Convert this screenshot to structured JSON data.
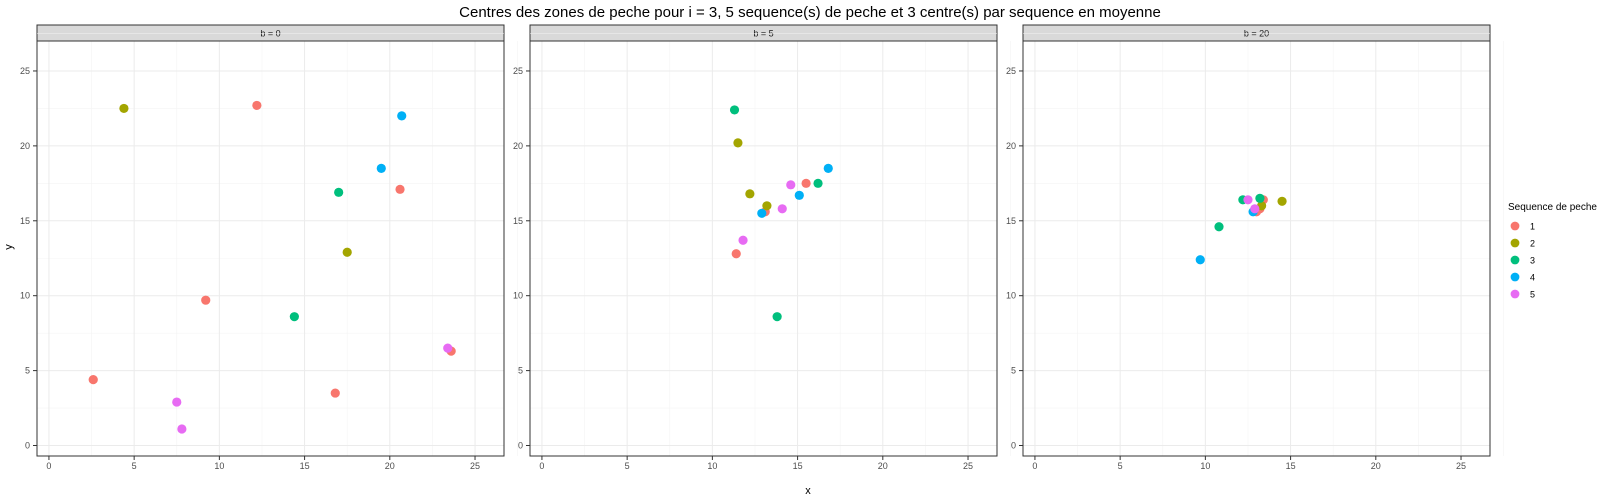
{
  "chart_data": {
    "type": "scatter",
    "title": "Centres des zones de peche pour i = 3, 5 sequence(s) de peche et 3 centre(s) par sequence en moyenne",
    "xlabel": "x",
    "ylabel": "y",
    "xlim": [
      -0.7,
      26.7
    ],
    "ylim": [
      -0.7,
      27.0
    ],
    "x_ticks": [
      0,
      5,
      10,
      15,
      20,
      25
    ],
    "y_ticks": [
      0,
      5,
      10,
      15,
      20,
      25
    ],
    "grid": true,
    "legend": {
      "title": "Sequence de peche",
      "placement": "right",
      "entries": [
        {
          "label": "1",
          "color": "#F8766D"
        },
        {
          "label": "2",
          "color": "#A3A500"
        },
        {
          "label": "3",
          "color": "#00BF7D"
        },
        {
          "label": "4",
          "color": "#00B0F6"
        },
        {
          "label": "5",
          "color": "#E76BF3"
        }
      ]
    },
    "facets": [
      {
        "label": "b = 0",
        "points": [
          {
            "x": 12.2,
            "y": 22.7,
            "seq": "1"
          },
          {
            "x": 20.6,
            "y": 17.1,
            "seq": "1"
          },
          {
            "x": 9.2,
            "y": 9.7,
            "seq": "1"
          },
          {
            "x": 2.6,
            "y": 4.4,
            "seq": "1"
          },
          {
            "x": 16.8,
            "y": 3.5,
            "seq": "1"
          },
          {
            "x": 23.6,
            "y": 6.3,
            "seq": "1"
          },
          {
            "x": 4.4,
            "y": 22.5,
            "seq": "2"
          },
          {
            "x": 17.5,
            "y": 12.9,
            "seq": "2"
          },
          {
            "x": 17.0,
            "y": 16.9,
            "seq": "3"
          },
          {
            "x": 14.4,
            "y": 8.6,
            "seq": "3"
          },
          {
            "x": 20.7,
            "y": 22.0,
            "seq": "4"
          },
          {
            "x": 19.5,
            "y": 18.5,
            "seq": "4"
          },
          {
            "x": 23.4,
            "y": 6.5,
            "seq": "5"
          },
          {
            "x": 7.5,
            "y": 2.9,
            "seq": "5"
          },
          {
            "x": 7.8,
            "y": 1.1,
            "seq": "5"
          }
        ]
      },
      {
        "label": "b = 5",
        "points": [
          {
            "x": 15.5,
            "y": 17.5,
            "seq": "1"
          },
          {
            "x": 13.1,
            "y": 15.6,
            "seq": "1"
          },
          {
            "x": 11.4,
            "y": 12.8,
            "seq": "1"
          },
          {
            "x": 11.5,
            "y": 20.2,
            "seq": "2"
          },
          {
            "x": 12.2,
            "y": 16.8,
            "seq": "2"
          },
          {
            "x": 13.2,
            "y": 16.0,
            "seq": "2"
          },
          {
            "x": 11.3,
            "y": 22.4,
            "seq": "3"
          },
          {
            "x": 16.2,
            "y": 17.5,
            "seq": "3"
          },
          {
            "x": 13.8,
            "y": 8.6,
            "seq": "3"
          },
          {
            "x": 16.8,
            "y": 18.5,
            "seq": "4"
          },
          {
            "x": 15.1,
            "y": 16.7,
            "seq": "4"
          },
          {
            "x": 12.9,
            "y": 15.5,
            "seq": "4"
          },
          {
            "x": 14.6,
            "y": 17.4,
            "seq": "5"
          },
          {
            "x": 14.1,
            "y": 15.8,
            "seq": "5"
          },
          {
            "x": 11.8,
            "y": 13.7,
            "seq": "5"
          }
        ]
      },
      {
        "label": "b = 20",
        "points": [
          {
            "x": 13.4,
            "y": 16.4,
            "seq": "1"
          },
          {
            "x": 13.2,
            "y": 15.8,
            "seq": "1"
          },
          {
            "x": 13.0,
            "y": 15.6,
            "seq": "1"
          },
          {
            "x": 14.5,
            "y": 16.3,
            "seq": "2"
          },
          {
            "x": 13.3,
            "y": 16.0,
            "seq": "2"
          },
          {
            "x": 12.2,
            "y": 16.4,
            "seq": "3"
          },
          {
            "x": 13.2,
            "y": 16.5,
            "seq": "3"
          },
          {
            "x": 10.8,
            "y": 14.6,
            "seq": "3"
          },
          {
            "x": 9.7,
            "y": 12.4,
            "seq": "4"
          },
          {
            "x": 12.8,
            "y": 15.6,
            "seq": "4"
          },
          {
            "x": 12.5,
            "y": 16.4,
            "seq": "5"
          },
          {
            "x": 12.9,
            "y": 15.8,
            "seq": "5"
          }
        ]
      }
    ]
  }
}
